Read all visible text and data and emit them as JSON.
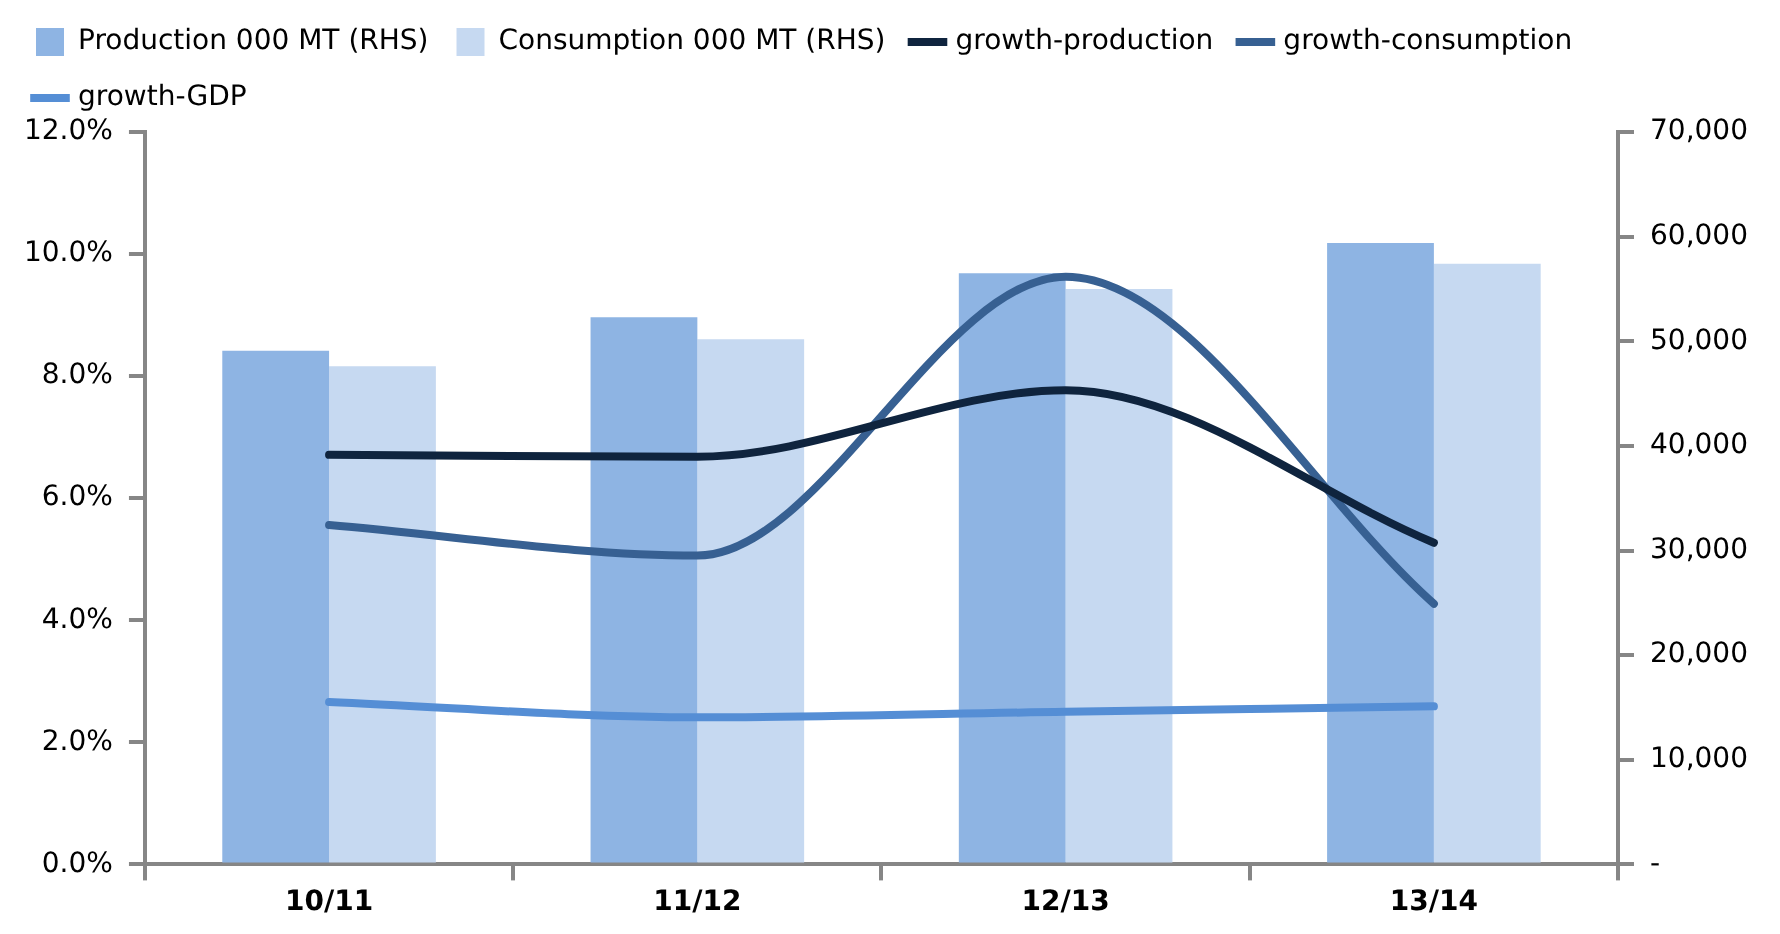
{
  "chart_data": {
    "type": "bar",
    "categories": [
      "10/11",
      "11/12",
      "12/13",
      "13/14"
    ],
    "series": [
      {
        "name": "Production 000 MT (RHS)",
        "axis": "y2",
        "color": "#8eb4e3",
        "values": [
          49100,
          52300,
          56500,
          59400
        ]
      },
      {
        "name": "Consumption 000 MT (RHS)",
        "axis": "y2",
        "color": "#c6d9f1",
        "values": [
          47600,
          50200,
          55000,
          57400
        ]
      },
      {
        "name": "growth-production",
        "type": "line",
        "color": "#0f243e",
        "values": [
          6.71,
          6.68,
          7.77,
          5.27
        ]
      },
      {
        "name": "growth-consumption",
        "type": "line",
        "color": "#376092",
        "values": [
          5.56,
          5.06,
          9.63,
          4.27
        ]
      },
      {
        "name": "growth-GDP",
        "type": "line",
        "color": "#558ed5",
        "values": [
          2.66,
          2.41,
          2.5,
          2.59
        ]
      }
    ],
    "ylim": [
      0,
      12
    ],
    "yticks": [
      {
        "value": 0,
        "label": "0.0%"
      },
      {
        "value": 2,
        "label": "2.0%"
      },
      {
        "value": 4,
        "label": "4.0%"
      },
      {
        "value": 6,
        "label": "6.0%"
      },
      {
        "value": 8,
        "label": "8.0%"
      },
      {
        "value": 10,
        "label": "10.0%"
      },
      {
        "value": 12,
        "label": "12.0%"
      }
    ],
    "y2lim": [
      0,
      70000
    ],
    "y2ticks": [
      {
        "value": 0,
        "label": "-"
      },
      {
        "value": 10000,
        "label": "10,000"
      },
      {
        "value": 20000,
        "label": "20,000"
      },
      {
        "value": 30000,
        "label": "30,000"
      },
      {
        "value": 40000,
        "label": "40,000"
      },
      {
        "value": 50000,
        "label": "50,000"
      },
      {
        "value": 60000,
        "label": "60,000"
      },
      {
        "value": 70000,
        "label": "70,000"
      }
    ],
    "grid": false,
    "legend": "top",
    "marker": "none",
    "line_style": "solid"
  }
}
